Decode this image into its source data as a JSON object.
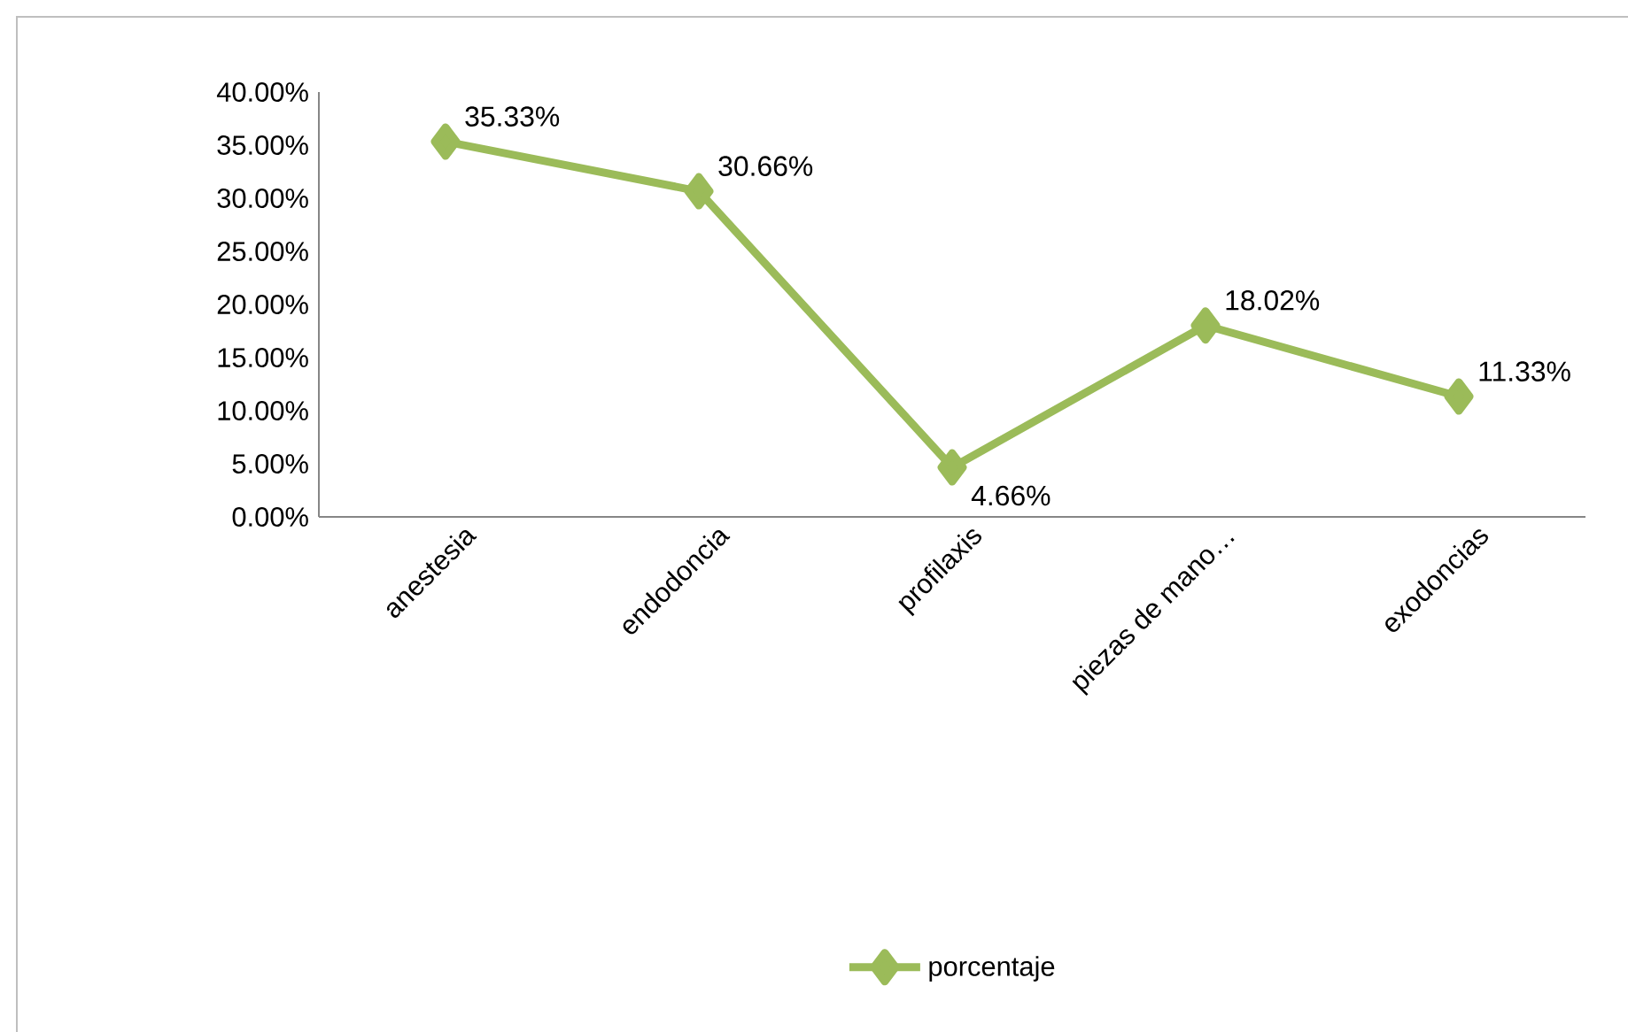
{
  "chart_data": {
    "type": "line",
    "categories": [
      "anestesia",
      "endodoncia",
      "profilaxis",
      "piezas de mano…",
      "exodoncias"
    ],
    "series": [
      {
        "name": "porcentaje",
        "color": "#9bbb59",
        "values": [
          35.33,
          30.66,
          4.66,
          18.02,
          11.33
        ],
        "value_labels": [
          "35.33%",
          "30.66%",
          "4.66%",
          "18.02%",
          "11.33%"
        ]
      }
    ],
    "ylim": [
      0,
      40
    ],
    "yticks": [
      {
        "value": 0,
        "label": "0.00%"
      },
      {
        "value": 5,
        "label": "5.00%"
      },
      {
        "value": 10,
        "label": "10.00%"
      },
      {
        "value": 15,
        "label": "15.00%"
      },
      {
        "value": 20,
        "label": "20.00%"
      },
      {
        "value": 25,
        "label": "25.00%"
      },
      {
        "value": 30,
        "label": "30.00%"
      },
      {
        "value": 35,
        "label": "35.00%"
      },
      {
        "value": 40,
        "label": "40.00%"
      }
    ],
    "grid": false,
    "legend": "bottom",
    "marker": "diamond",
    "line_style": "solid"
  }
}
